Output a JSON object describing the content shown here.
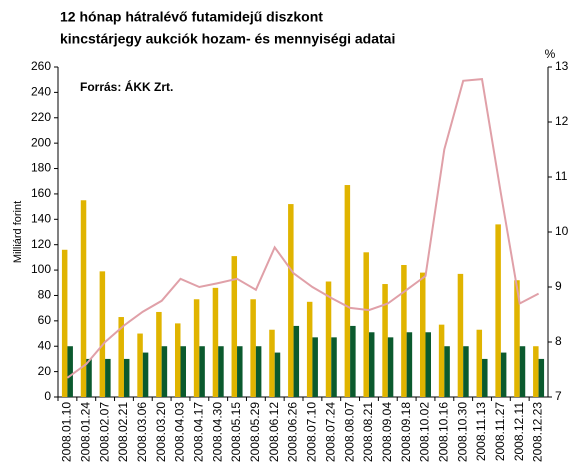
{
  "chart_data": {
    "type": "bar-line",
    "title": [
      "12 hónap hátralévő futamidejű diszkont",
      "kincstárjegy aukciók hozam- és mennyiségi adatai"
    ],
    "source": "Forrás:  ÁKK Zrt.",
    "ylabel": "Milliárd forint",
    "y2label": "%",
    "categories": [
      "2008.01.10",
      "2008.01.24",
      "2008.02.07",
      "2008.02.21",
      "2008.03.06",
      "2008.03.20",
      "2008.04.03",
      "2008.04.17",
      "2008.04.30",
      "2008.05.15",
      "2008.05.29",
      "2008.06.12",
      "2008.06.26",
      "2008.07.10",
      "2008.07.24",
      "2008.08.07",
      "2008.08.21",
      "2008.09.04",
      "2008.09.18",
      "2008.10.02",
      "2008.10.16",
      "2008.10.30",
      "2008.11.13",
      "2008.11.27",
      "2008.12.11",
      "2008.12.23"
    ],
    "series": [
      {
        "type": "bar",
        "color": "#e0b400",
        "values": [
          116,
          155,
          99,
          63,
          50,
          67,
          58,
          77,
          86,
          111,
          77,
          53,
          152,
          75,
          91,
          167,
          114,
          89,
          104,
          98,
          57,
          97,
          53,
          136,
          92,
          40
        ]
      },
      {
        "type": "bar",
        "color": "#0b5a2e",
        "values": [
          40,
          30,
          30,
          30,
          35,
          40,
          40,
          40,
          40,
          40,
          40,
          35,
          56,
          47,
          47,
          56,
          51,
          47,
          51,
          51,
          40,
          40,
          30,
          35,
          40,
          30
        ]
      },
      {
        "type": "line",
        "axis": "y2",
        "color": "#e0a0a8",
        "values": [
          7.35,
          7.6,
          8.0,
          8.3,
          8.55,
          8.75,
          9.15,
          9.0,
          9.07,
          9.15,
          8.95,
          9.72,
          9.25,
          9.0,
          8.8,
          8.62,
          8.58,
          8.7,
          8.95,
          9.2,
          11.5,
          12.75,
          12.78,
          10.7,
          8.7,
          8.88
        ]
      }
    ],
    "ylim": [
      0,
      260
    ],
    "yticks": [
      0,
      20,
      40,
      60,
      80,
      100,
      120,
      140,
      160,
      180,
      200,
      220,
      240,
      260
    ],
    "y2lim": [
      7,
      13
    ],
    "y2ticks": [
      7,
      8,
      9,
      10,
      11,
      12,
      13
    ]
  }
}
